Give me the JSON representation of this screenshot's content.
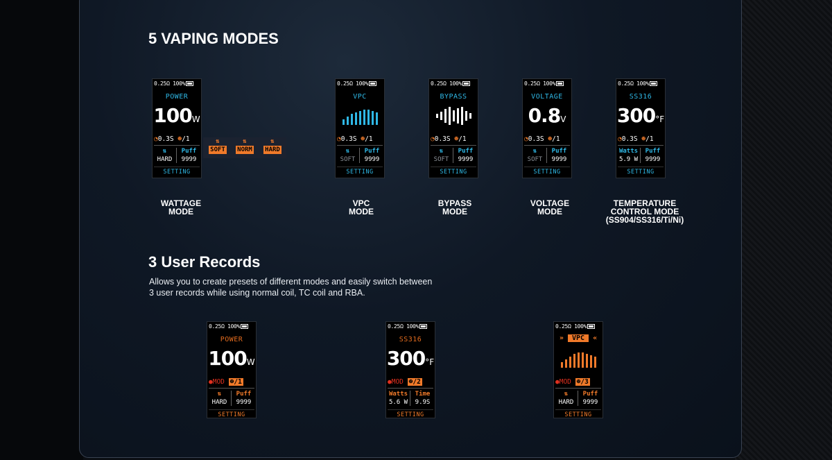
{
  "section1": {
    "title": "5 VAPING MODES",
    "modes": [
      {
        "label_lines": [
          "WATTAGE",
          "MODE"
        ]
      },
      {
        "label_lines": [
          "VPC",
          "MODE"
        ]
      },
      {
        "label_lines": [
          "BYPASS",
          "MODE"
        ]
      },
      {
        "label_lines": [
          "VOLTAGE",
          "MODE"
        ]
      },
      {
        "label_lines": [
          "TEMPERATURE",
          "CONTROL MODE",
          "(SS904/SS316/Ti/Ni)"
        ]
      }
    ]
  },
  "section2": {
    "title": "3 User Records",
    "desc_line1": "Allows you to create presets of different modes and easily switch between",
    "desc_line2": "3 user records while using normal coil, TC coil and RBA."
  },
  "screens": {
    "status": "0.25Ω 100%",
    "setting": "SETTING",
    "power": {
      "mode": "POWER",
      "value": "100",
      "unit": "W",
      "time": "0.3S",
      "user": "/1",
      "left_top": "⇅",
      "left_bottom": "HARD",
      "right_top": "Puff",
      "right_bottom": "9999"
    },
    "vpc": {
      "mode": "VPC",
      "time": "0.3S",
      "user": "/1",
      "left_top": "⇅",
      "left_bottom": "SOFT",
      "right_top": "Puff",
      "right_bottom": "9999"
    },
    "bypass": {
      "mode": "BYPASS",
      "time": "0.3S",
      "user": "/1",
      "left_top": "⇅",
      "left_bottom": "SOFT",
      "right_top": "Puff",
      "right_bottom": "9999"
    },
    "voltage": {
      "mode": "VOLTAGE",
      "value": "0.8",
      "unit": "V",
      "time": "0.3S",
      "user": "/1",
      "left_top": "⇅",
      "left_bottom": "SOFT",
      "right_top": "Puff",
      "right_bottom": "9999"
    },
    "temp": {
      "mode": "SS316",
      "value": "300",
      "unit": "°F",
      "time": "0.3S",
      "user": "/1",
      "left_top": "Watts",
      "left_bottom": "5.9 W",
      "right_top": "Puff",
      "right_bottom": "9999"
    },
    "strength_options": [
      "SOFT",
      "NORM",
      "HARD"
    ],
    "rec1": {
      "mode": "POWER",
      "value": "100",
      "unit": "W",
      "tag": "MOD",
      "user": "/1",
      "left_top": "⇅",
      "left_bottom": "HARD",
      "right_top": "Puff",
      "right_bottom": "9999"
    },
    "rec2": {
      "mode": "SS316",
      "value": "300",
      "unit": "°F",
      "tag": "MOD",
      "user": "/2",
      "left_top": "Watts",
      "left_bottom": "5.6 W",
      "right_top": "Time",
      "right_bottom": "9.9S"
    },
    "rec3": {
      "mode": "VPC",
      "tag": "MOD",
      "user": "/3",
      "left_top": "⇅",
      "left_bottom": "HARD",
      "right_top": "Puff",
      "right_bottom": "9999"
    }
  },
  "colors": {
    "accent_blue": "#2fb8e6",
    "accent_orange": "#f07a2a",
    "mod_red": "#e0301f"
  }
}
